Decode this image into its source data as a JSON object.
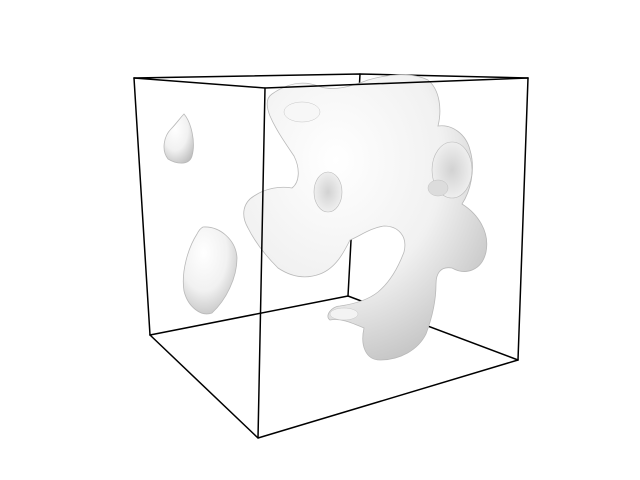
{
  "scene": {
    "background_color": "#ffffff",
    "bounding_box": {
      "visible": true,
      "shape": "cube-wireframe",
      "edge_color": "#000000"
    },
    "surface": {
      "type": "isosurface",
      "color": "#f0f0f0",
      "shade_color": "#bdbdbd",
      "highlight_color": "#ffffff"
    }
  }
}
